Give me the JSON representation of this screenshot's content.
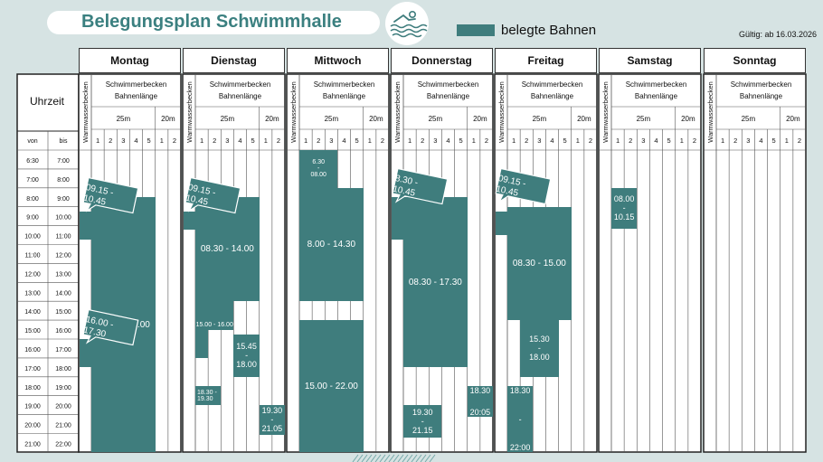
{
  "header": {
    "title": "Belegungsplan Schwimmhalle",
    "legend_label": "belegte Bahnen",
    "valid_from": "Gültig: ab 16.03.2026"
  },
  "colors": {
    "occupied": "#3f7d7d",
    "background": "#d6e3e3",
    "title": "#3b8080"
  },
  "time_column": {
    "header": "Uhrzeit",
    "von": "von",
    "bis": "bis",
    "rows": [
      [
        "6:30",
        "7:00"
      ],
      [
        "7:00",
        "8:00"
      ],
      [
        "8:00",
        "9:00"
      ],
      [
        "9:00",
        "10:00"
      ],
      [
        "10:00",
        "11:00"
      ],
      [
        "11:00",
        "12:00"
      ],
      [
        "12:00",
        "13:00"
      ],
      [
        "13:00",
        "14:00"
      ],
      [
        "14:00",
        "15:00"
      ],
      [
        "15:00",
        "16:00"
      ],
      [
        "16:00",
        "17:00"
      ],
      [
        "17:00",
        "18:00"
      ],
      [
        "18:00",
        "19:00"
      ],
      [
        "19:00",
        "20:00"
      ],
      [
        "20:00",
        "21:00"
      ],
      [
        "21:00",
        "22:00"
      ]
    ]
  },
  "lane_headers": {
    "warm": "Warmwasserbecken",
    "pool": "Schwimmerbecken",
    "lane_length": "Bahnenlänge",
    "len25": "25m",
    "len20": "20m",
    "lanes": [
      "1",
      "2",
      "3",
      "4",
      "5",
      "1",
      "2"
    ]
  },
  "days": [
    {
      "name": "Montag",
      "blocks": [
        {
          "label": "08.30 - 22.00",
          "note": "Schwimmerbecken 25m"
        },
        {
          "label": "09.15 - 10.45",
          "note": "Warmwasserbecken"
        },
        {
          "label": "16.00 - 17.30",
          "note": "Warmwasserbecken"
        }
      ]
    },
    {
      "name": "Dienstag",
      "blocks": [
        {
          "label": "08.30 - 14.00"
        },
        {
          "label": "09.15 - 10.45"
        },
        {
          "label": "15.00 - 16.00"
        },
        {
          "label": "15.45 - 18.00"
        },
        {
          "label": "18.30 - 19.30"
        },
        {
          "label": "19.30 - 21.05"
        }
      ]
    },
    {
      "name": "Mittwoch",
      "blocks": [
        {
          "label": "6.30 - 08.00"
        },
        {
          "label": "8.00 - 14.30"
        },
        {
          "label": "15.00 - 22.00"
        }
      ]
    },
    {
      "name": "Donnerstag",
      "blocks": [
        {
          "label": "8.30 - 10.45"
        },
        {
          "label": "08.30 - 17.30"
        },
        {
          "label": "19.30 - 21.15"
        },
        {
          "label": "18.30 20:05"
        }
      ]
    },
    {
      "name": "Freitag",
      "blocks": [
        {
          "label": "09.15 - 10.45"
        },
        {
          "label": "08.30 - 15.00"
        },
        {
          "label": "15.30 - 18.00"
        },
        {
          "label": "18.30 - 22:00"
        }
      ]
    },
    {
      "name": "Samstag",
      "blocks": [
        {
          "label": "08.00 - 10.15"
        }
      ]
    },
    {
      "name": "Sonntag",
      "blocks": []
    }
  ]
}
